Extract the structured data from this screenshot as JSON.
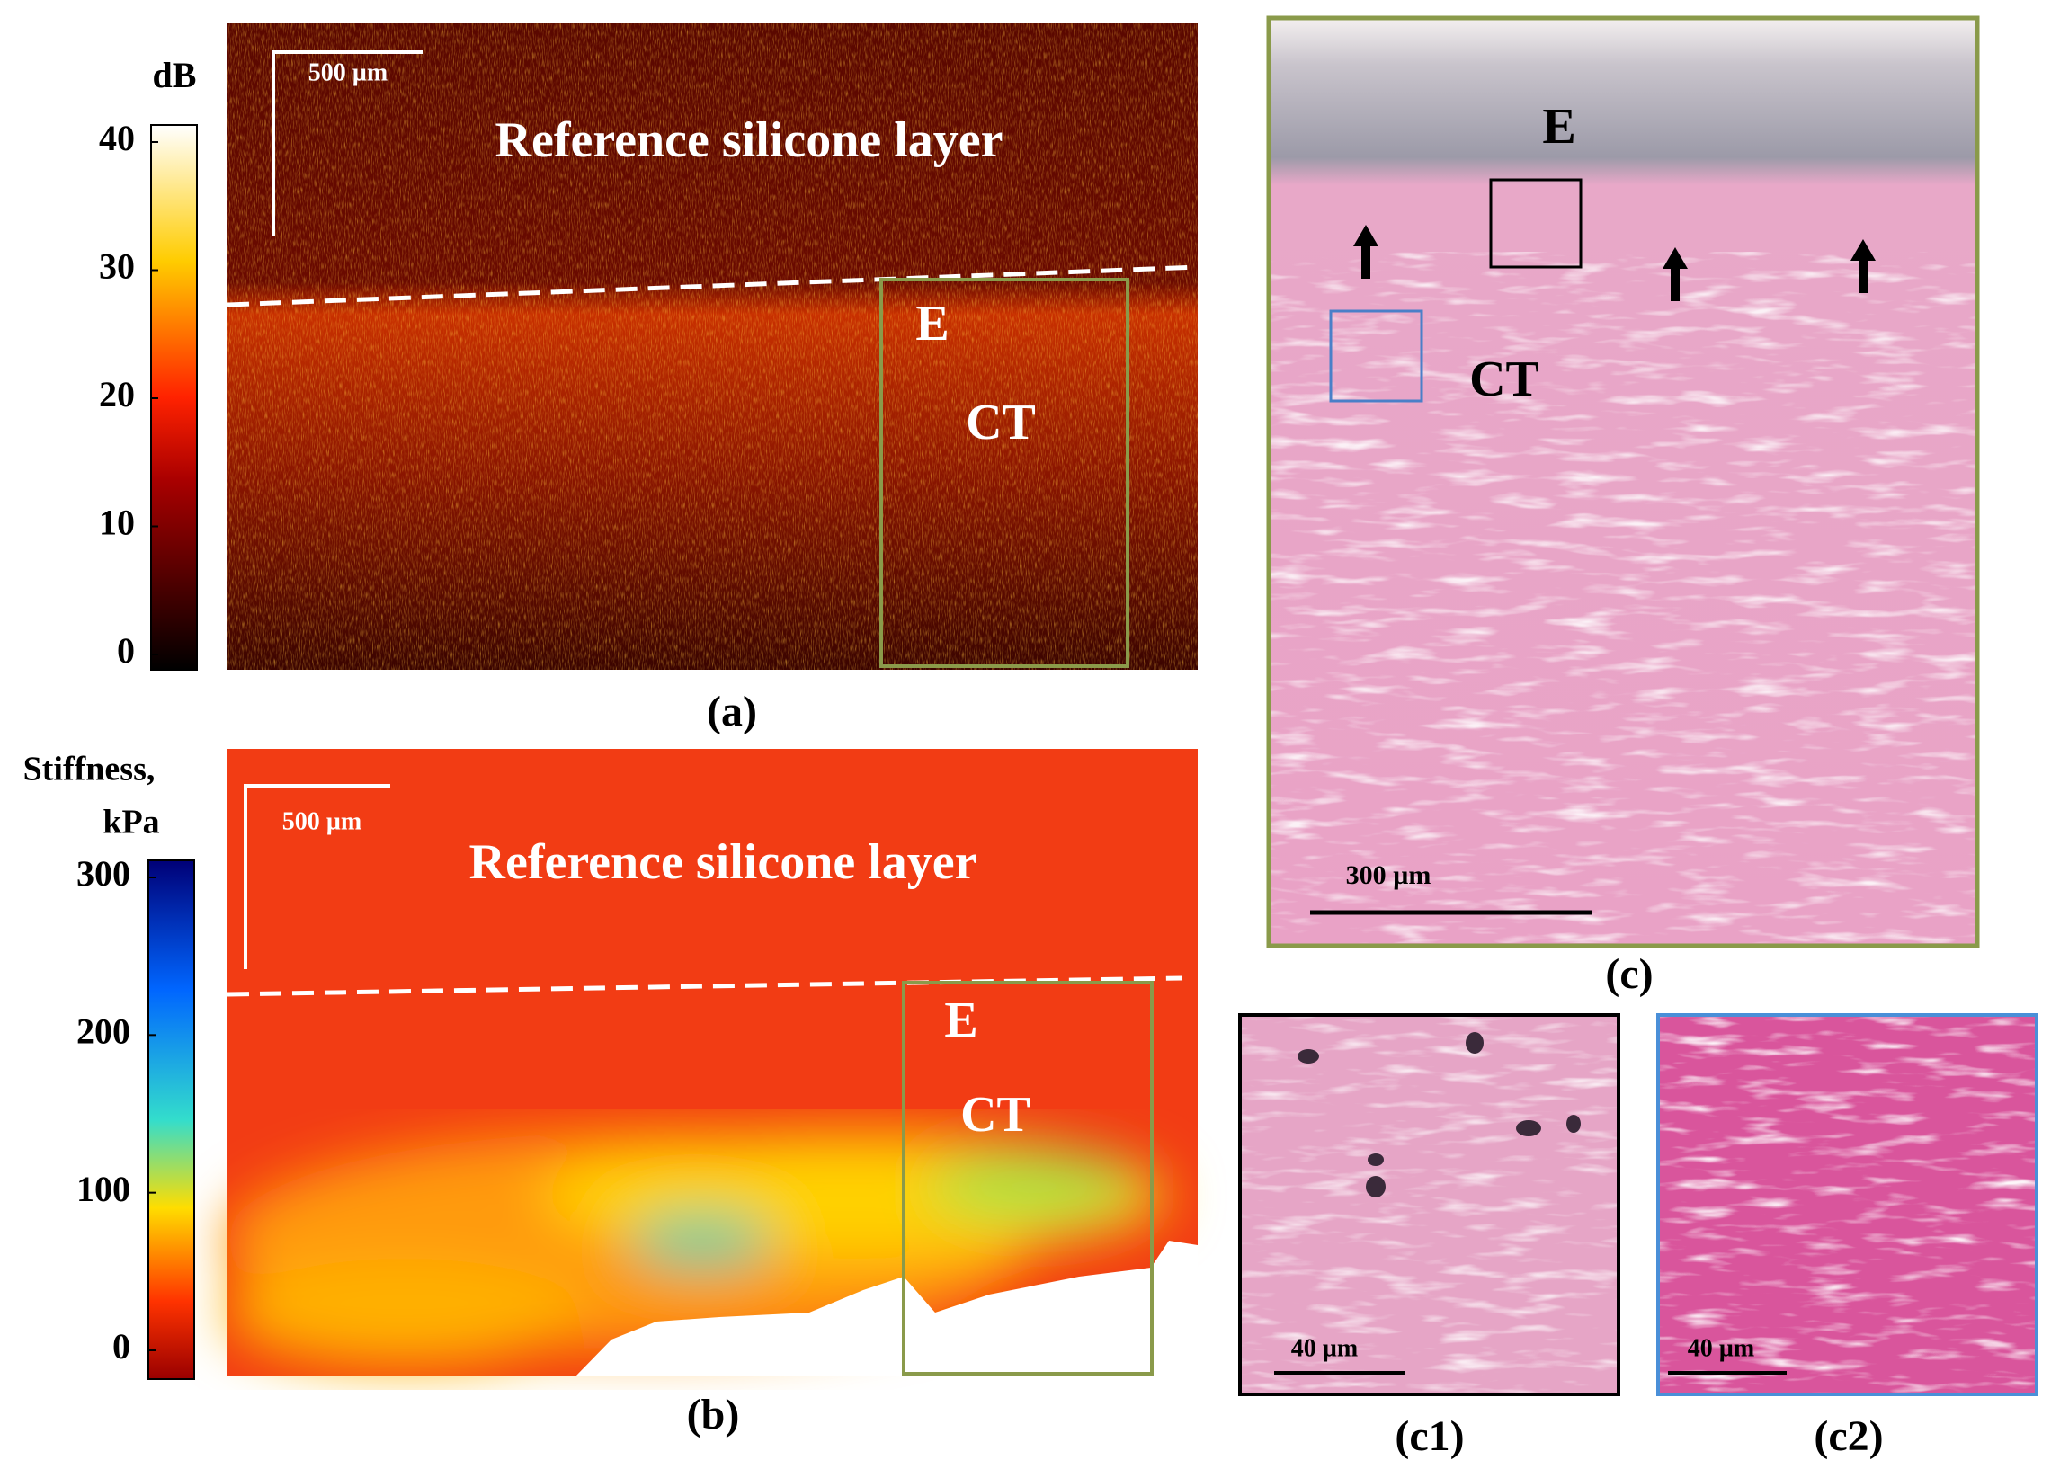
{
  "panel_a": {
    "colorbar": {
      "title": "dB",
      "ticks": [
        0,
        10,
        20,
        30,
        40
      ]
    },
    "scale_bar": "500 µm",
    "annotations": [
      "Reference silicone layer",
      "E",
      "CT"
    ],
    "label": "(a)"
  },
  "panel_b": {
    "colorbar": {
      "title": [
        "Stiffness,",
        "kPa"
      ],
      "ticks": [
        0,
        100,
        200,
        300
      ]
    },
    "scale_bar": "500 µm",
    "annotations": [
      "Reference silicone layer",
      "E",
      "CT"
    ],
    "label": "(b)"
  },
  "panel_c": {
    "annotations": [
      "E",
      "CT"
    ],
    "scale_bar": "300 µm",
    "label": "(c)"
  },
  "panel_c1": {
    "scale_bar": "40 µm",
    "label": "(c1)"
  },
  "panel_c2": {
    "scale_bar": "40 µm",
    "label": "(c2)"
  }
}
